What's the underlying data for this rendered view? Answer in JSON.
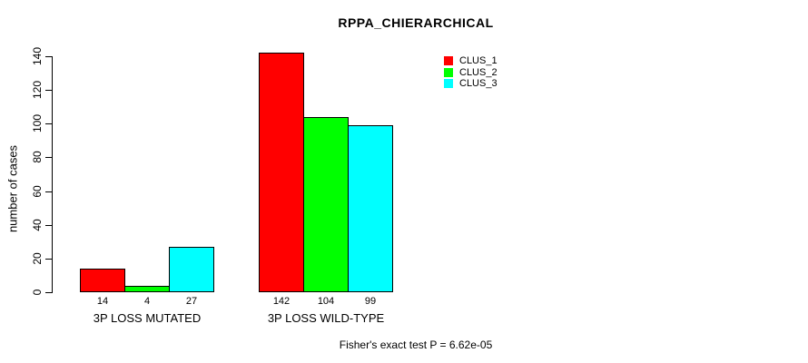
{
  "title": "RPPA_CHIERARCHICAL",
  "ylabel": "number of cases",
  "footnote": "Fisher's exact test P = 6.62e-05",
  "chart_data": {
    "type": "bar",
    "title": "RPPA_CHIERARCHICAL",
    "xlabel": "",
    "ylabel": "number of cases",
    "categories": [
      "3P LOSS MUTATED",
      "3P LOSS WILD-TYPE"
    ],
    "series": [
      {
        "name": "CLUS_1",
        "color": "#ff0000",
        "values": [
          14,
          142
        ]
      },
      {
        "name": "CLUS_2",
        "color": "#00ff00",
        "values": [
          4,
          104
        ]
      },
      {
        "name": "CLUS_3",
        "color": "#00ffff",
        "values": [
          27,
          99
        ]
      }
    ],
    "bar_value_labels": [
      [
        14,
        4,
        27
      ],
      [
        142,
        104,
        99
      ]
    ],
    "yticks": [
      0,
      20,
      40,
      60,
      80,
      100,
      120,
      140
    ],
    "ylim": [
      0,
      145
    ],
    "grid": false,
    "legend_position": "top-right",
    "annotation": "Fisher's exact test P = 6.62e-05"
  }
}
